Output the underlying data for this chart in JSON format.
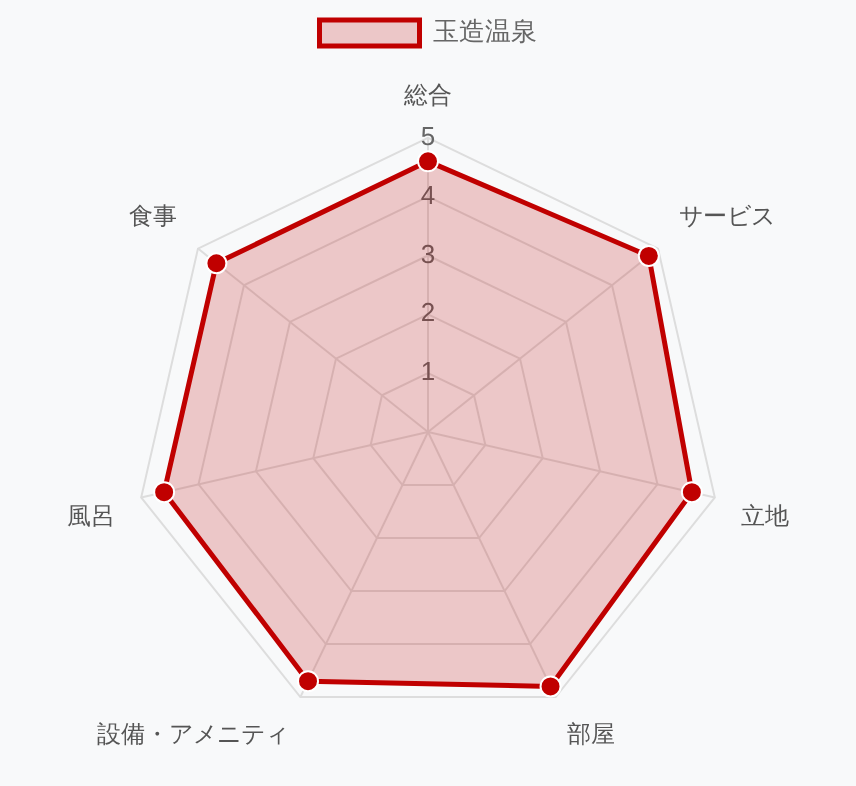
{
  "chart_data": {
    "type": "radar",
    "categories": [
      "総合",
      "サービス",
      "立地",
      "部屋",
      "設備・アメニティ",
      "風呂",
      "食事"
    ],
    "series": [
      {
        "name": "玉造温泉",
        "color": "#c00000",
        "values": [
          4.6,
          4.8,
          4.6,
          4.8,
          4.7,
          4.6,
          4.6
        ]
      }
    ],
    "ylim": [
      0,
      5
    ],
    "yticks": [
      1,
      2,
      3,
      4,
      5
    ],
    "grid": true,
    "legend": "top",
    "marker": "circle"
  }
}
